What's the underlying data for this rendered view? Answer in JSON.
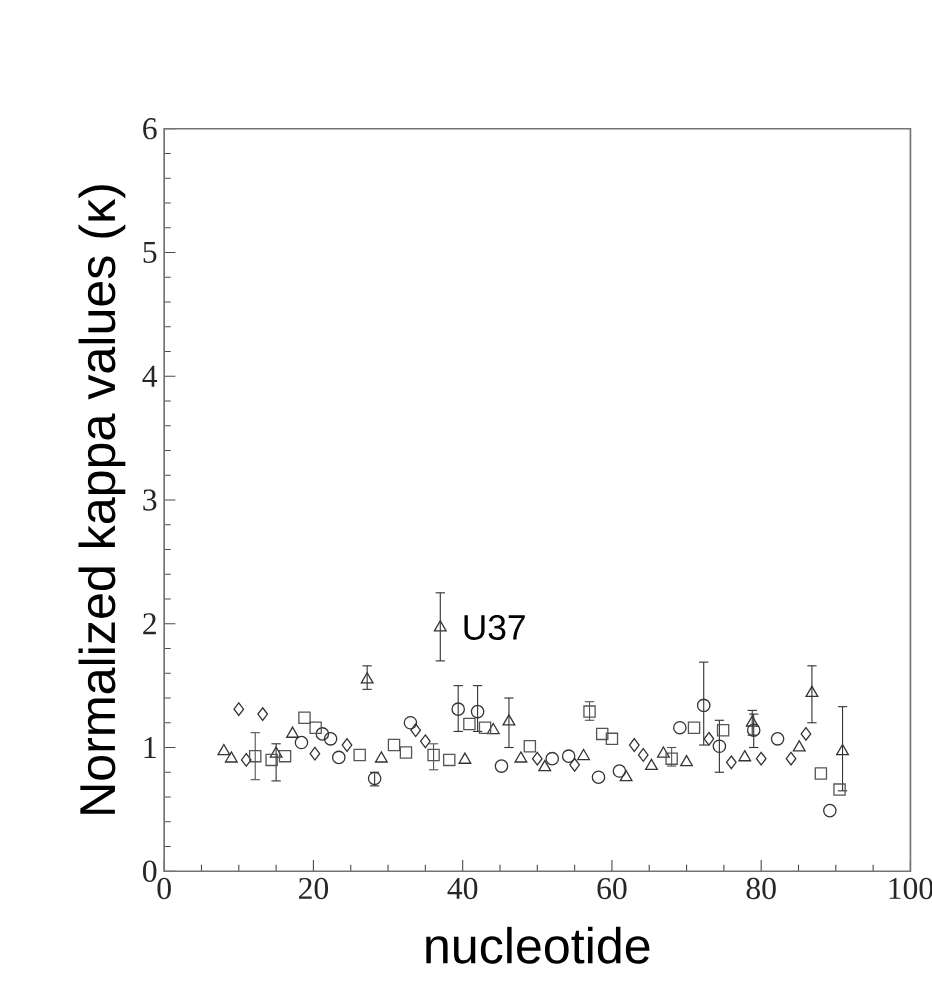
{
  "chart_data": {
    "type": "scatter",
    "xlabel": "nucleotide",
    "ylabel": "Normalized kappa values (κ)",
    "xlim": [
      0,
      100
    ],
    "ylim": [
      0,
      6
    ],
    "xticks": [
      0,
      {
        "value": 5,
        "label": null
      },
      {
        "value": 10,
        "label": null
      },
      {
        "value": 15,
        "label": null
      },
      20,
      {
        "value": 25,
        "label": null
      },
      {
        "value": 30,
        "label": null
      },
      {
        "value": 35,
        "label": null
      },
      40,
      {
        "value": 45,
        "label": null
      },
      {
        "value": 50,
        "label": null
      },
      {
        "value": 55,
        "label": null
      },
      60,
      {
        "value": 65,
        "label": null
      },
      {
        "value": 70,
        "label": null
      },
      {
        "value": 75,
        "label": null
      },
      80,
      {
        "value": 85,
        "label": null
      },
      {
        "value": 90,
        "label": null
      },
      {
        "value": 95,
        "label": null
      },
      100
    ],
    "yticks": [
      0,
      {
        "value": 0.2,
        "label": null
      },
      {
        "value": 0.4,
        "label": null
      },
      {
        "value": 0.6,
        "label": null
      },
      {
        "value": 0.8,
        "label": null
      },
      1,
      {
        "value": 1.2,
        "label": null
      },
      {
        "value": 1.4,
        "label": null
      },
      {
        "value": 1.6,
        "label": null
      },
      {
        "value": 1.8,
        "label": null
      },
      2,
      {
        "value": 2.2,
        "label": null
      },
      {
        "value": 2.4,
        "label": null
      },
      {
        "value": 2.6,
        "label": null
      },
      {
        "value": 2.8,
        "label": null
      },
      3,
      {
        "value": 3.2,
        "label": null
      },
      {
        "value": 3.4,
        "label": null
      },
      {
        "value": 3.6,
        "label": null
      },
      {
        "value": 3.8,
        "label": null
      },
      4,
      {
        "value": 4.2,
        "label": null
      },
      {
        "value": 4.4,
        "label": null
      },
      {
        "value": 4.6,
        "label": null
      },
      {
        "value": 4.8,
        "label": null
      },
      5,
      {
        "value": 5.2,
        "label": null
      },
      {
        "value": 5.4,
        "label": null
      },
      {
        "value": 5.6,
        "label": null
      },
      {
        "value": 5.8,
        "label": null
      },
      6
    ],
    "grid": false,
    "annotations": [
      {
        "text": "U37",
        "x": 37,
        "y": 1.97
      }
    ],
    "series": [
      {
        "marker": "triangle",
        "color": "#333333",
        "x": [
          8,
          9,
          15,
          17.2,
          27.2,
          29.1,
          37,
          40.3,
          44.1,
          46.2,
          47.8,
          51,
          56.2,
          61.9,
          65.3,
          66.9,
          70,
          77.8,
          78.8,
          85.1,
          86.8,
          90.9
        ],
        "values": [
          0.97,
          0.91,
          0.95,
          1.11,
          1.55,
          0.91,
          1.97,
          0.9,
          1.14,
          1.21,
          0.91,
          0.84,
          0.93,
          0.76,
          0.85,
          0.95,
          0.88,
          0.92,
          1.2,
          1.0,
          1.44,
          0.97
        ],
        "errors": [
          null,
          null,
          [
            0.73,
            1.03
          ],
          null,
          [
            1.47,
            1.66
          ],
          null,
          [
            1.7,
            2.25
          ],
          null,
          null,
          [
            1.0,
            1.4
          ],
          null,
          null,
          null,
          null,
          null,
          null,
          null,
          null,
          [
            1.1,
            1.3
          ],
          null,
          [
            1.2,
            1.66
          ],
          [
            0.65,
            1.33
          ]
        ]
      },
      {
        "marker": "diamond",
        "color": "#333333",
        "x": [
          10,
          11,
          13.2,
          20.2,
          24.5,
          33.7,
          35,
          50,
          55,
          63,
          64.2,
          73,
          76,
          80,
          84,
          86
        ],
        "values": [
          1.31,
          0.9,
          1.27,
          0.95,
          1.02,
          1.14,
          1.05,
          0.91,
          0.86,
          1.02,
          0.94,
          1.07,
          0.88,
          0.91,
          0.91,
          1.11
        ]
      },
      {
        "marker": "circle",
        "color": "#333333",
        "x": [
          18.4,
          21.2,
          22.3,
          23.4,
          28.2,
          33,
          39.4,
          42,
          45.2,
          52,
          54.2,
          58.2,
          61,
          69.1,
          72.3,
          74.4,
          79,
          82.2,
          89.2
        ],
        "values": [
          1.04,
          1.11,
          1.07,
          0.92,
          0.75,
          1.2,
          1.31,
          1.29,
          0.85,
          0.91,
          0.93,
          0.76,
          0.81,
          1.16,
          1.34,
          1.01,
          1.14,
          1.07,
          0.49
        ],
        "errors": [
          null,
          null,
          null,
          null,
          [
            0.69,
            0.8
          ],
          null,
          [
            1.13,
            1.5
          ],
          [
            1.13,
            1.5
          ],
          null,
          null,
          null,
          null,
          null,
          null,
          [
            1.02,
            1.69
          ],
          [
            0.8,
            1.22
          ],
          [
            1.0,
            1.27
          ],
          null,
          null
        ]
      },
      {
        "marker": "square",
        "color": "#555555",
        "x": [
          12.2,
          14.4,
          16.2,
          18.8,
          20.3,
          26.2,
          30.8,
          32.4,
          36.1,
          38.2,
          40.9,
          43,
          49,
          57,
          58.7,
          60,
          68,
          71,
          74.9,
          88,
          90.5
        ],
        "values": [
          0.93,
          0.9,
          0.93,
          1.24,
          1.16,
          0.94,
          1.02,
          0.96,
          0.94,
          0.9,
          1.19,
          1.16,
          1.01,
          1.29,
          1.11,
          1.07,
          0.91,
          1.16,
          1.14,
          0.79,
          0.66
        ],
        "errors": [
          [
            0.74,
            1.12
          ],
          null,
          null,
          null,
          null,
          null,
          null,
          null,
          [
            0.82,
            1.03
          ],
          null,
          null,
          null,
          null,
          [
            1.22,
            1.37
          ],
          null,
          null,
          [
            0.85,
            1.0
          ],
          null,
          null,
          null,
          null
        ]
      }
    ]
  }
}
